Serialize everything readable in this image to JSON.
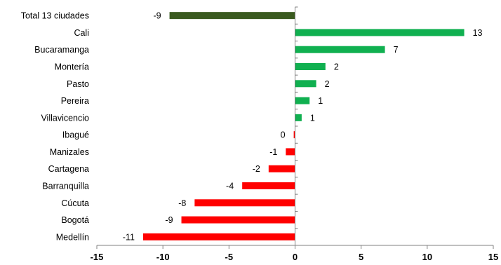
{
  "chart_data": {
    "type": "bar",
    "orientation": "horizontal",
    "categories": [
      "Total 13 ciudades",
      "Cali",
      "Bucaramanga",
      "Montería",
      "Pasto",
      "Pereira",
      "Villavicencio",
      "Ibagué",
      "Manizales",
      "Cartagena",
      "Barranquilla",
      "Cúcuta",
      "Bogotá",
      "Medellín"
    ],
    "values": [
      -9.5,
      12.8,
      6.8,
      2.3,
      1.6,
      1.1,
      0.5,
      -0.1,
      -0.7,
      -2.0,
      -4.0,
      -7.6,
      -8.6,
      -11.5
    ],
    "data_labels": [
      "-9",
      "13",
      "7",
      "2",
      "2",
      "1",
      "1",
      "0",
      "-1",
      "-2",
      "-4",
      "-8",
      "-9",
      "-11"
    ],
    "bar_colors": [
      "#3a5a1f",
      "#10b050",
      "#10b050",
      "#10b050",
      "#10b050",
      "#10b050",
      "#10b050",
      "#ff0000",
      "#ff0000",
      "#ff0000",
      "#ff0000",
      "#ff0000",
      "#ff0000",
      "#ff0000"
    ],
    "title": "",
    "xlabel": "",
    "ylabel": "",
    "xlim": [
      -15,
      15
    ],
    "xticks": [
      -15,
      -10,
      -5,
      0,
      5,
      10,
      15
    ],
    "xtick_labels": [
      "-15",
      "-10",
      "-5",
      "0",
      "5",
      "10",
      "15"
    ],
    "grid": false,
    "legend": "none"
  }
}
